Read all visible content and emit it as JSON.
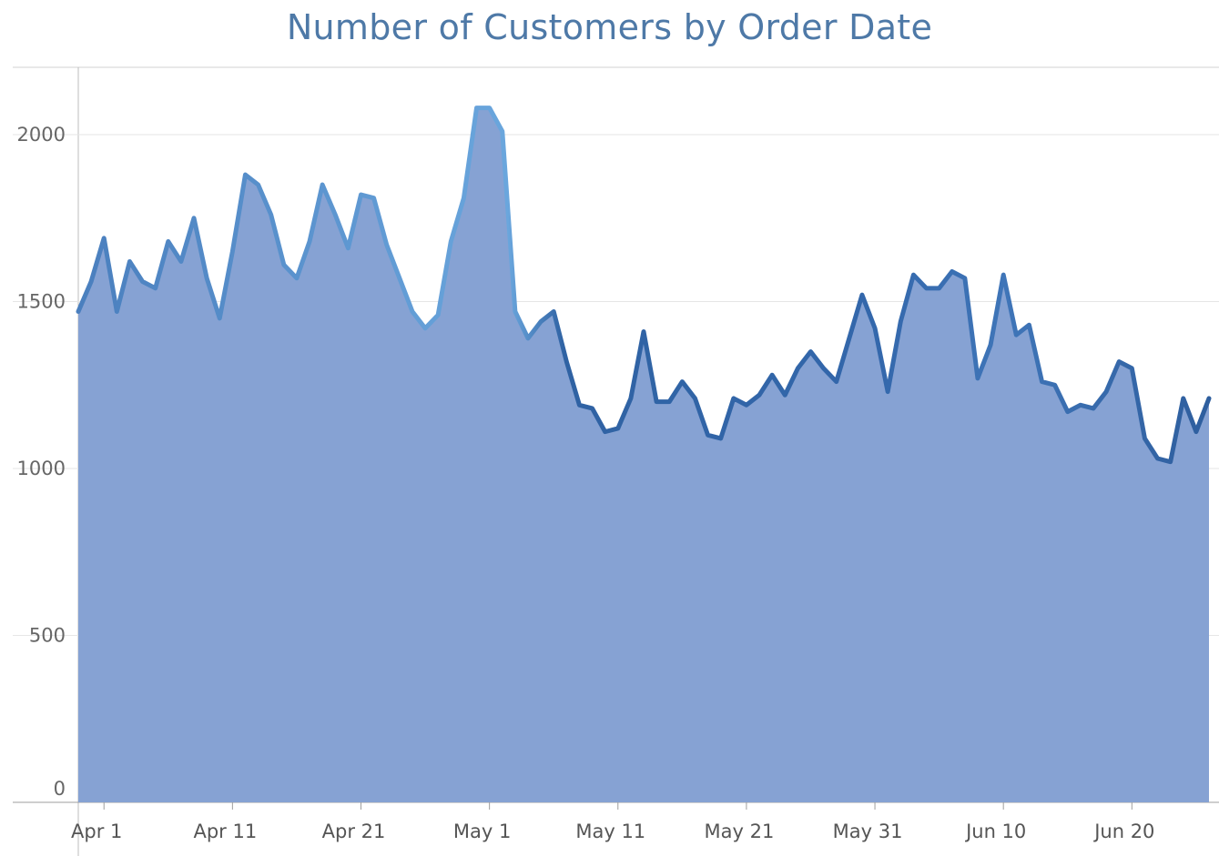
{
  "chart_data": {
    "type": "area",
    "title": "Number of Customers by Order Date",
    "xlabel": "",
    "ylabel": "",
    "ylim": [
      0,
      2200
    ],
    "yticks": [
      0,
      500,
      1000,
      1500,
      2000
    ],
    "grid": true,
    "x_start": "2021-03-30",
    "x_ticks": [
      {
        "label": "Apr 1",
        "date": "2021-04-01"
      },
      {
        "label": "Apr 11",
        "date": "2021-04-11"
      },
      {
        "label": "Apr 21",
        "date": "2021-04-21"
      },
      {
        "label": "May 1",
        "date": "2021-05-01"
      },
      {
        "label": "May 11",
        "date": "2021-05-11"
      },
      {
        "label": "May 21",
        "date": "2021-05-21"
      },
      {
        "label": "May 31",
        "date": "2021-05-31"
      },
      {
        "label": "Jun 10",
        "date": "2021-06-10"
      },
      {
        "label": "Jun 20",
        "date": "2021-06-20"
      }
    ],
    "values": [
      1470,
      1560,
      1690,
      1470,
      1620,
      1560,
      1540,
      1680,
      1620,
      1750,
      1570,
      1450,
      1650,
      1880,
      1850,
      1760,
      1610,
      1570,
      1680,
      1850,
      1760,
      1660,
      1820,
      1810,
      1670,
      1570,
      1470,
      1420,
      1460,
      1680,
      1810,
      2080,
      2080,
      2010,
      1470,
      1390,
      1440,
      1470,
      1320,
      1190,
      1180,
      1110,
      1120,
      1210,
      1410,
      1200,
      1200,
      1260,
      1210,
      1100,
      1090,
      1210,
      1190,
      1220,
      1280,
      1220,
      1300,
      1350,
      1300,
      1260,
      1390,
      1520,
      1420,
      1230,
      1440,
      1580,
      1540,
      1540,
      1590,
      1570,
      1270,
      1370,
      1580,
      1400,
      1430,
      1260,
      1250,
      1170,
      1190,
      1180,
      1230,
      1320,
      1300,
      1090,
      1030,
      1020,
      1210,
      1110,
      1210
    ],
    "colors": {
      "fill": "#86a2d3",
      "line_light": "#6a9fd4",
      "line_dark": "#2e5e9e",
      "title": "#4e79a7"
    }
  }
}
